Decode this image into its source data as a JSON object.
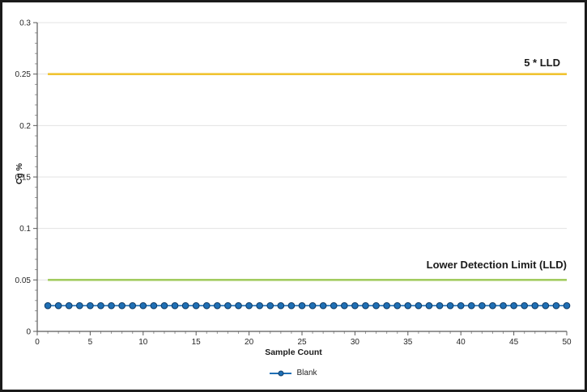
{
  "chart_data": {
    "type": "line",
    "title": "",
    "xlabel": "Sample Count",
    "ylabel": "Cg %",
    "xlim": [
      0,
      50
    ],
    "ylim": [
      0,
      0.3
    ],
    "x_major_ticks": [
      0,
      5,
      10,
      15,
      20,
      25,
      30,
      35,
      40,
      45,
      50
    ],
    "x_minor_step": 1,
    "y_major_ticks": [
      0,
      0.05,
      0.1,
      0.15,
      0.2,
      0.25,
      0.3
    ],
    "y_tick_labels": [
      "0",
      "0.05",
      "0.1",
      "0.15",
      "0.2",
      "0.25",
      "0.3"
    ],
    "y_minor_step": 0.01,
    "grid": "horizontal-major",
    "axis_color": "#595959",
    "grid_color": "#E3E3E3",
    "tick_label_color": "#262626",
    "series": [
      {
        "name": "Blank",
        "style": "line+markers",
        "color": "#1F6FB5",
        "marker_edge_color": "#123E69",
        "x": [
          1,
          2,
          3,
          4,
          5,
          6,
          7,
          8,
          9,
          10,
          11,
          12,
          13,
          14,
          15,
          16,
          17,
          18,
          19,
          20,
          21,
          22,
          23,
          24,
          25,
          26,
          27,
          28,
          29,
          30,
          31,
          32,
          33,
          34,
          35,
          36,
          37,
          38,
          39,
          40,
          41,
          42,
          43,
          44,
          45,
          46,
          47,
          48,
          49,
          50
        ],
        "y": [
          0.025,
          0.025,
          0.025,
          0.025,
          0.025,
          0.025,
          0.025,
          0.025,
          0.025,
          0.025,
          0.025,
          0.025,
          0.025,
          0.025,
          0.025,
          0.025,
          0.025,
          0.025,
          0.025,
          0.025,
          0.025,
          0.025,
          0.025,
          0.025,
          0.025,
          0.025,
          0.025,
          0.025,
          0.025,
          0.025,
          0.025,
          0.025,
          0.025,
          0.025,
          0.025,
          0.025,
          0.025,
          0.025,
          0.025,
          0.025,
          0.025,
          0.025,
          0.025,
          0.025,
          0.025,
          0.025,
          0.025,
          0.025,
          0.025,
          0.025
        ]
      },
      {
        "name": "5 * LLD",
        "style": "line",
        "color": "#F0C331",
        "x": [
          1,
          50
        ],
        "y": [
          0.25,
          0.25
        ]
      },
      {
        "name": "Lower Detection Limit (LLD)",
        "style": "line",
        "color": "#A3CC60",
        "x": [
          1,
          50
        ],
        "y": [
          0.05,
          0.05
        ]
      }
    ],
    "annotations": [
      {
        "text": "5 * LLD",
        "value": 0.25,
        "placement": "above-line-right"
      },
      {
        "text": "Lower Detection Limit (LLD)",
        "value": 0.05,
        "placement": "above-line-right"
      }
    ],
    "legend": {
      "position": "bottom-center",
      "entries": [
        {
          "label": "Blank",
          "color": "#1F6FB5"
        }
      ]
    }
  }
}
